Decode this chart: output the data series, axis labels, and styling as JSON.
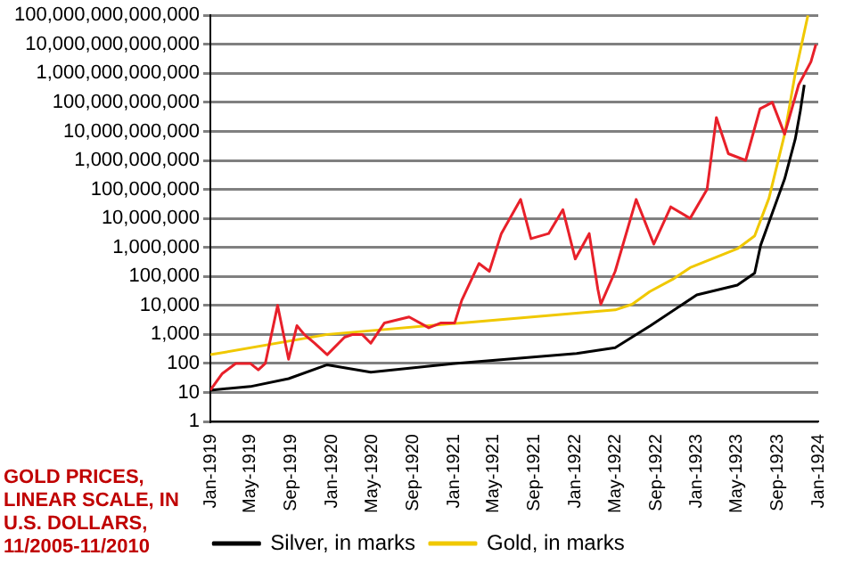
{
  "chart_data": {
    "type": "line",
    "log": "y",
    "grid": "y",
    "legend": "bottom",
    "marker": "none",
    "line_style": "solid",
    "annotations": [
      "GOLD PRICES, LINEAR SCALE, IN U.S. DOLLARS, 11/2005-11/2010"
    ],
    "xlim": [
      "1919-01-01",
      "1924-01-01"
    ],
    "xticks": [
      {
        "value": "1919-01-01",
        "label": "Jan-1919"
      },
      {
        "value": "1919-05-01",
        "label": "May-1919"
      },
      {
        "value": "1919-09-01",
        "label": "Sep-1919"
      },
      {
        "value": "1920-01-01",
        "label": "Jan-1920"
      },
      {
        "value": "1920-05-01",
        "label": "May-1920"
      },
      {
        "value": "1920-09-01",
        "label": "Sep-1920"
      },
      {
        "value": "1921-01-01",
        "label": "Jan-1921"
      },
      {
        "value": "1921-05-01",
        "label": "May-1921"
      },
      {
        "value": "1921-09-01",
        "label": "Sep-1921"
      },
      {
        "value": "1922-01-01",
        "label": "Jan-1922"
      },
      {
        "value": "1922-05-01",
        "label": "May-1922"
      },
      {
        "value": "1922-09-01",
        "label": "Sep-1922"
      },
      {
        "value": "1923-01-01",
        "label": "Jan-1923"
      },
      {
        "value": "1923-05-01",
        "label": "May-1923"
      },
      {
        "value": "1923-09-01",
        "label": "Sep-1923"
      },
      {
        "value": "1924-01-01",
        "label": "Jan-1924"
      }
    ],
    "ylim": [
      1,
      100000000000000
    ],
    "yticks": [
      1,
      10,
      100,
      {
        "value": 1000,
        "label": "1,000"
      },
      {
        "value": 10000,
        "label": "10,000"
      },
      {
        "value": 100000,
        "label": "100,000"
      },
      {
        "value": 1000000,
        "label": "1,000,000"
      },
      {
        "value": 10000000,
        "label": "10,000,000"
      },
      {
        "value": 100000000,
        "label": "100,000,000"
      },
      {
        "value": 1000000000,
        "label": "1,000,000,000"
      },
      {
        "value": 10000000000,
        "label": "10,000,000,000"
      },
      {
        "value": 100000000000,
        "label": "100,000,000,000"
      },
      {
        "value": 1000000000000,
        "label": "1,000,000,000,000"
      },
      {
        "value": 10000000000000,
        "label": "10,000,000,000,000"
      },
      {
        "value": 100000000000000,
        "label": "100,000,000,000,000"
      }
    ],
    "series": [
      {
        "color": "#e8202a",
        "x": [
          "1919-01-01",
          "1919-02-06",
          "1919-03-18",
          "1919-05-01",
          "1919-05-25",
          "1919-06-15",
          "1919-07-22",
          "1919-08-24",
          "1919-09-18",
          "1919-10-10",
          "1919-11-10",
          "1919-12-18",
          "1920-02-08",
          "1920-03-04",
          "1920-04-01",
          "1920-04-27",
          "1920-06-07",
          "1920-08-20",
          "1920-10-18",
          "1920-11-24",
          "1921-01-04",
          "1921-01-25",
          "1921-03-18",
          "1921-04-18",
          "1921-05-24",
          "1921-07-21",
          "1921-08-21",
          "1921-10-13",
          "1921-11-25",
          "1922-01-01",
          "1922-02-12",
          "1922-03-10",
          "1922-03-19",
          "1922-05-01",
          "1922-07-03",
          "1922-08-25",
          "1922-10-15",
          "1922-12-12",
          "1923-02-01",
          "1923-03-01",
          "1923-04-06",
          "1923-05-28",
          "1923-07-10",
          "1923-08-16",
          "1923-09-22",
          "1923-11-03",
          "1923-12-10",
          "1923-12-25"
        ],
        "values": [
          12,
          45,
          100,
          100,
          60,
          100,
          10000,
          140,
          2000,
          1000,
          500,
          200,
          800,
          1000,
          1000,
          500,
          2500,
          4000,
          1700,
          2500,
          2500,
          15000,
          280000,
          150000,
          3000000,
          45000000,
          2000000,
          3000000,
          20000000,
          400000,
          3000000,
          36000,
          11000,
          150000,
          45000000,
          1300000,
          25000000,
          10000000,
          100000000,
          30000000000,
          1700000000,
          1000000000,
          60000000000,
          100000000000,
          8000000000,
          400000000000,
          2500000000000,
          10000000000000
        ]
      },
      {
        "name": "Silver, in marks",
        "color": "#000000",
        "x": [
          "1919-01-01",
          "1919-05-01",
          "1919-08-24",
          "1919-12-18",
          "1920-04-27",
          "1921-01-04",
          "1922-01-05",
          "1922-05-01",
          "1922-08-15",
          "1923-01-01",
          "1923-05-03",
          "1923-06-24",
          "1923-07-12",
          "1923-09-22",
          "1923-10-24",
          "1923-11-08",
          "1923-11-20"
        ],
        "values": [
          12,
          16,
          30,
          90,
          50,
          100,
          220,
          350,
          2000,
          23000,
          50000,
          130000,
          1200000,
          230000000,
          5500000000,
          50000000000,
          400000000000
        ]
      },
      {
        "name": "Gold, in marks",
        "color": "#f0c800",
        "x": [
          "1919-01-01",
          "1919-12-18",
          "1921-01-25",
          "1922-05-01",
          "1922-06-21",
          "1922-08-13",
          "1922-10-21",
          "1922-12-12",
          "1923-05-03",
          "1923-06-24",
          "1923-08-06",
          "1923-09-22",
          "1923-10-24",
          "1923-12-01"
        ],
        "values": [
          200,
          1000,
          2500,
          7000,
          11000,
          30000,
          80000,
          200000,
          900000,
          2500000,
          50000000,
          8000000000,
          1000000000000,
          100000000000000
        ]
      }
    ]
  }
}
